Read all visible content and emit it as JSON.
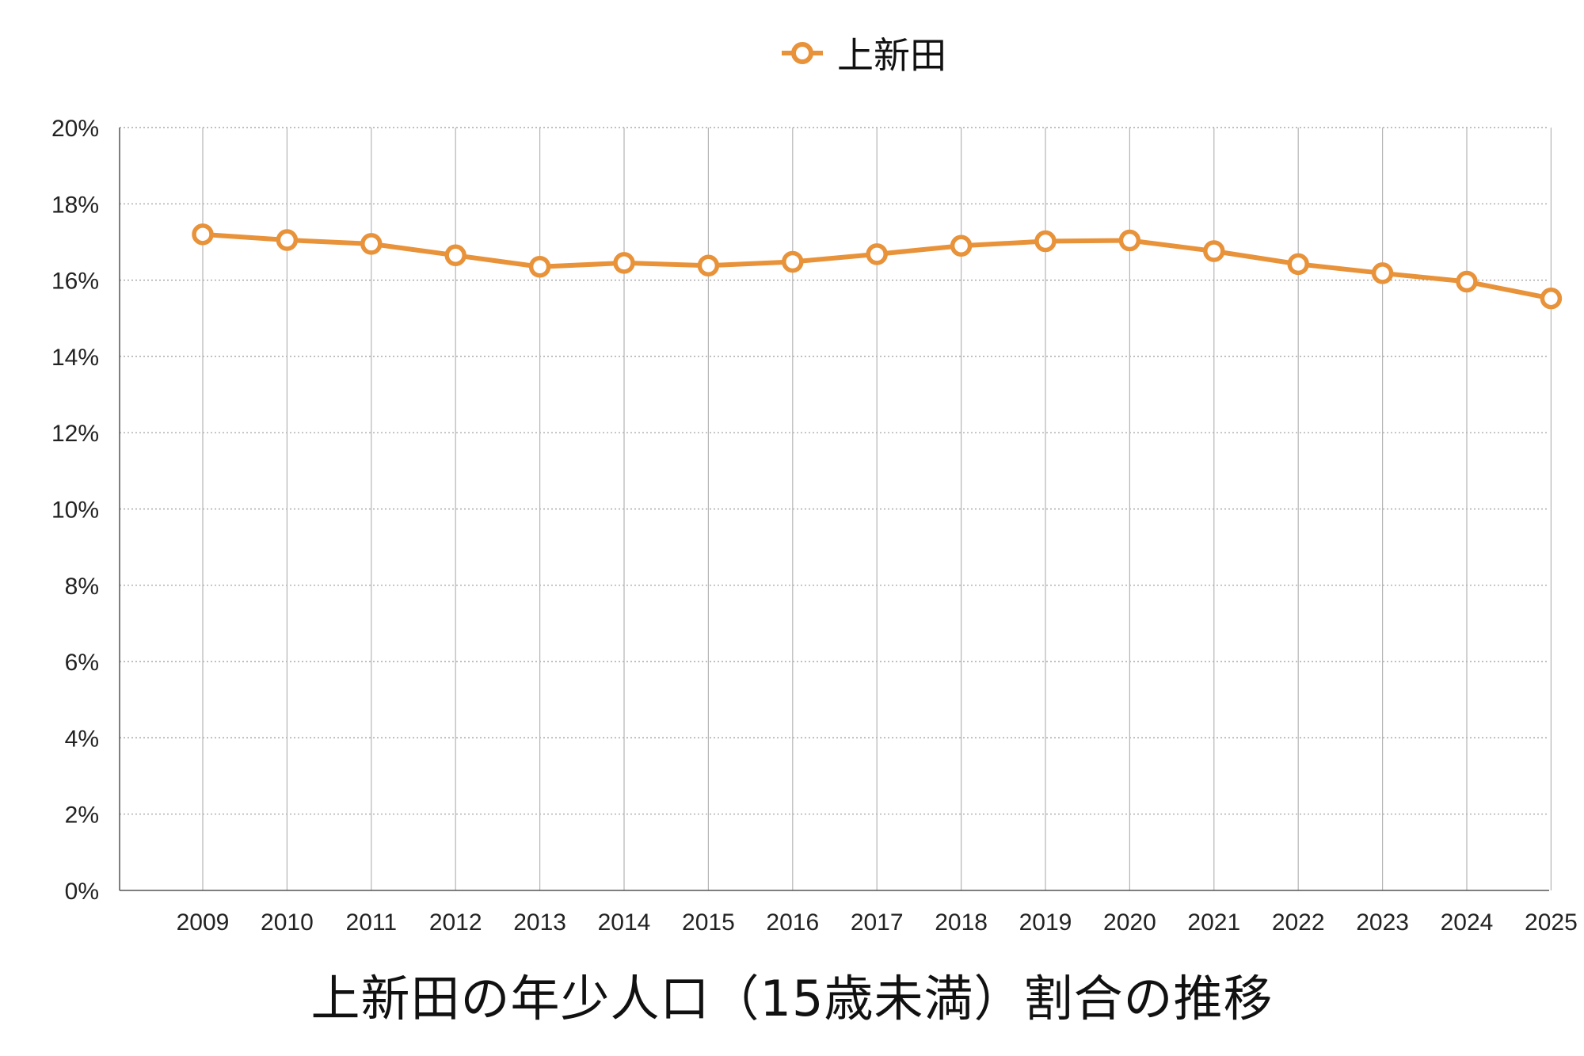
{
  "chart_data": {
    "type": "line",
    "title": "上新田の年少人口（15歳未満）割合の推移",
    "xlabel": "",
    "ylabel": "",
    "categories": [
      "2009",
      "2010",
      "2011",
      "2012",
      "2013",
      "2014",
      "2015",
      "2016",
      "2017",
      "2018",
      "2019",
      "2020",
      "2021",
      "2022",
      "2023",
      "2024",
      "2025"
    ],
    "series": [
      {
        "name": "上新田",
        "values": [
          17.2,
          17.05,
          16.95,
          16.65,
          16.35,
          16.45,
          16.38,
          16.48,
          16.68,
          16.9,
          17.02,
          17.04,
          16.76,
          16.42,
          16.18,
          15.96,
          15.52
        ],
        "color": "#E8923A"
      }
    ],
    "ylim": [
      0,
      20
    ],
    "yticks": [
      "0%",
      "2%",
      "4%",
      "6%",
      "8%",
      "10%",
      "12%",
      "14%",
      "16%",
      "18%",
      "20%"
    ],
    "grid": true,
    "legend_position": "top-center"
  }
}
